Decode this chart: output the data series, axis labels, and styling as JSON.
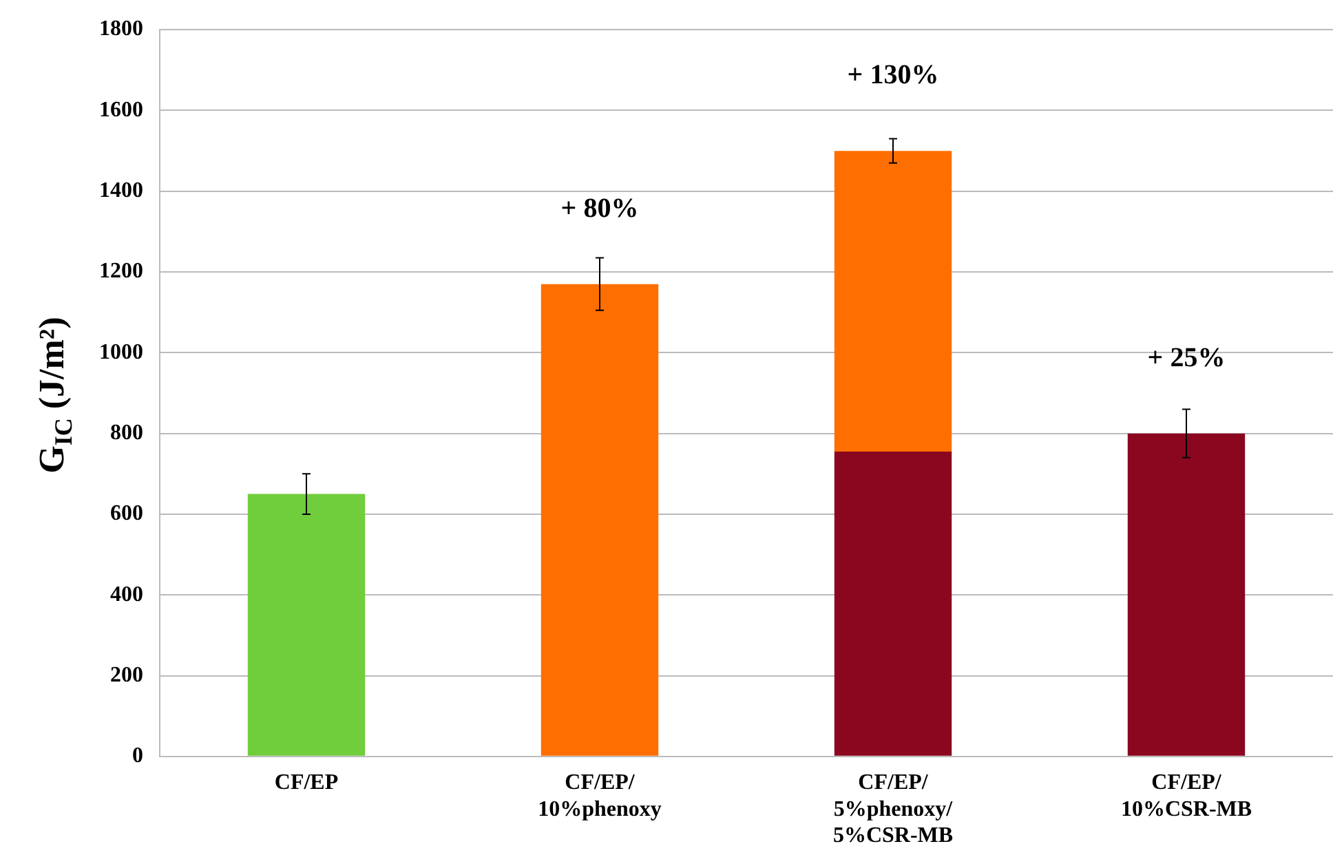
{
  "chart_data": {
    "type": "bar",
    "ylabel": "G$_{IC}$ (J/m²)",
    "categories": [
      "CF/EP",
      "CF/EP/10%phenoxy",
      "CF/EP/5%phenoxy/5%CSR-MB",
      "CF/EP/10%CSR-MB"
    ],
    "stacked": true,
    "series": [
      {
        "color": "#70cd3c",
        "values": [
          650,
          null,
          null,
          null
        ],
        "errors": [
          50,
          null,
          null,
          null
        ]
      },
      {
        "color": "#8b061f",
        "values": [
          null,
          null,
          755,
          800
        ],
        "errors": [
          null,
          null,
          null,
          60
        ]
      },
      {
        "color": "#ff6e00",
        "values": [
          null,
          1170,
          745,
          null
        ],
        "errors": [
          null,
          65,
          30,
          null
        ]
      }
    ],
    "ylim": [
      0,
      1800
    ],
    "yticks": [
      0,
      200,
      400,
      600,
      800,
      1000,
      1200,
      1400,
      1600,
      1800
    ],
    "grid": "y",
    "legend": false,
    "annotations": [
      {
        "text": "+ 80%",
        "x": "CF/EP/10%phenoxy",
        "y": 1170
      },
      {
        "text": "+ 130%",
        "x": "CF/EP/5%phenoxy/5%CSR-MB",
        "y": 1500
      },
      {
        "text": "+ 25%",
        "x": "CF/EP/10%CSR-MB",
        "y": 800
      }
    ]
  }
}
